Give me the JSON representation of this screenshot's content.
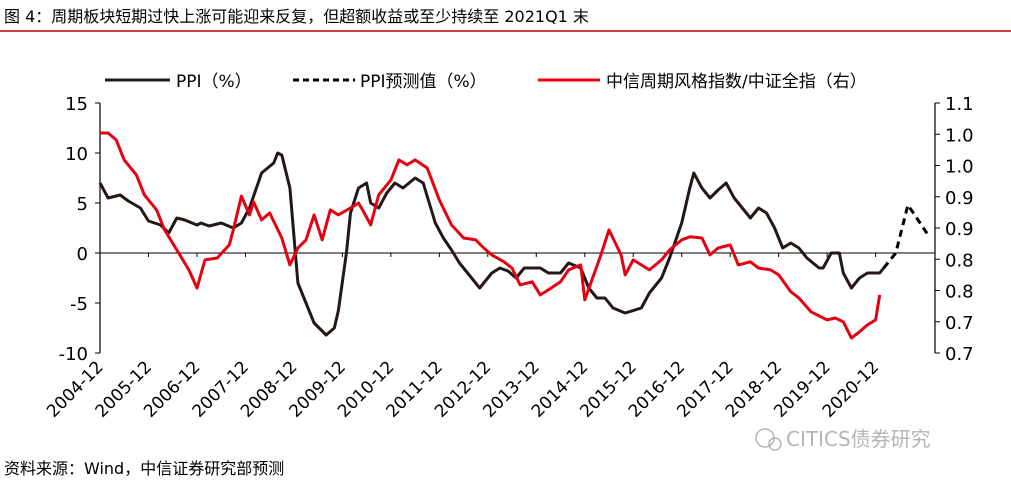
{
  "title": "图 4：周期板块短期过快上涨可能迎来反复，但超额收益或至少持续至 2021Q1 末",
  "source": "资料来源：Wind，中信证券研究部预测",
  "watermark": "CITICS债券研究",
  "colors": {
    "ppi": "#231815",
    "forecast": "#000000",
    "index": "#e60012",
    "rule": "#c00000"
  },
  "chart_data": {
    "type": "line",
    "x_unit": "months since 2004-12",
    "xlim": [
      0,
      206.7
    ],
    "xticks": [
      0,
      12,
      24,
      36,
      48,
      60,
      72,
      84,
      96,
      108,
      120,
      132,
      144,
      156,
      168,
      180,
      192
    ],
    "xtick_labels": [
      "2004-12",
      "2005-12",
      "2006-12",
      "2007-12",
      "2008-12",
      "2009-12",
      "2010-12",
      "2011-12",
      "2012-12",
      "2013-12",
      "2014-12",
      "2015-12",
      "2016-12",
      "2017-12",
      "2018-12",
      "2019-12",
      "2020-12"
    ],
    "ylim_left": [
      -10,
      15
    ],
    "yticks_left": [
      15,
      10,
      5,
      0,
      -5,
      -10
    ],
    "yticks_left_labels": [
      "15",
      "10",
      "5",
      "0",
      "-5",
      "-10"
    ],
    "ylim_right": [
      0.7,
      1.1
    ],
    "yticks_right": [
      1.1,
      1.05,
      1.0,
      0.95,
      0.9,
      0.85,
      0.8,
      0.75,
      0.7
    ],
    "yticks_right_labels": [
      "1.1",
      "1.0",
      "1.0",
      "0.9",
      "0.9",
      "0.8",
      "0.8",
      "0.7",
      "0.7"
    ],
    "legend_position": "top",
    "series": [
      {
        "name": "PPI（%）",
        "axis": "left",
        "style": "solid",
        "color": "#231815",
        "points": [
          [
            0,
            7.0
          ],
          [
            2,
            5.5
          ],
          [
            5,
            5.8
          ],
          [
            7,
            5.2
          ],
          [
            10,
            4.5
          ],
          [
            12,
            3.2
          ],
          [
            15,
            2.8
          ],
          [
            17,
            2.0
          ],
          [
            19,
            3.5
          ],
          [
            21,
            3.3
          ],
          [
            24,
            2.8
          ],
          [
            25,
            3.0
          ],
          [
            27,
            2.7
          ],
          [
            30,
            3.0
          ],
          [
            33,
            2.5
          ],
          [
            35,
            3.0
          ],
          [
            37,
            4.5
          ],
          [
            40,
            8.0
          ],
          [
            43,
            9.0
          ],
          [
            44,
            10.0
          ],
          [
            45,
            9.8
          ],
          [
            47,
            6.5
          ],
          [
            49,
            -3.0
          ],
          [
            51,
            -5.0
          ],
          [
            53,
            -7.0
          ],
          [
            56,
            -8.2
          ],
          [
            58,
            -7.5
          ],
          [
            59,
            -5.8
          ],
          [
            61,
            0
          ],
          [
            62,
            4.0
          ],
          [
            64,
            6.5
          ],
          [
            66,
            7.0
          ],
          [
            67,
            5.0
          ],
          [
            69,
            4.5
          ],
          [
            71,
            6.0
          ],
          [
            73,
            7.0
          ],
          [
            75,
            6.5
          ],
          [
            78,
            7.5
          ],
          [
            80,
            7.0
          ],
          [
            83,
            3.0
          ],
          [
            85,
            1.5
          ],
          [
            87,
            0.3
          ],
          [
            89,
            -1.0
          ],
          [
            92,
            -2.5
          ],
          [
            94,
            -3.5
          ],
          [
            97,
            -2.0
          ],
          [
            99,
            -1.5
          ],
          [
            101,
            -1.8
          ],
          [
            103,
            -2.5
          ],
          [
            105,
            -1.5
          ],
          [
            109,
            -1.5
          ],
          [
            111,
            -2.0
          ],
          [
            114,
            -2.0
          ],
          [
            116,
            -1.0
          ],
          [
            119,
            -1.5
          ],
          [
            121,
            -3.5
          ],
          [
            123,
            -4.5
          ],
          [
            125,
            -4.5
          ],
          [
            127,
            -5.5
          ],
          [
            130,
            -6.0
          ],
          [
            134,
            -5.5
          ],
          [
            136,
            -4.0
          ],
          [
            139,
            -2.5
          ],
          [
            141,
            -0.5
          ],
          [
            144,
            3.0
          ],
          [
            146,
            6.5
          ],
          [
            147,
            8.0
          ],
          [
            149,
            6.5
          ],
          [
            151,
            5.5
          ],
          [
            153,
            6.3
          ],
          [
            155,
            7.0
          ],
          [
            157,
            5.5
          ],
          [
            159,
            4.5
          ],
          [
            161,
            3.5
          ],
          [
            163,
            4.5
          ],
          [
            165,
            4.0
          ],
          [
            167,
            2.5
          ],
          [
            169,
            0.5
          ],
          [
            171,
            1.0
          ],
          [
            173,
            0.5
          ],
          [
            175,
            -0.5
          ],
          [
            178,
            -1.5
          ],
          [
            179,
            -1.5
          ],
          [
            181,
            0
          ],
          [
            183,
            0
          ],
          [
            184,
            -2.0
          ],
          [
            186,
            -3.5
          ],
          [
            188,
            -2.5
          ],
          [
            190,
            -2.0
          ],
          [
            193,
            -2.0
          ],
          [
            194,
            -1.5
          ]
        ]
      },
      {
        "name": "PPI预测值（%）",
        "axis": "left",
        "style": "dashed",
        "color": "#000000",
        "points": [
          [
            194,
            -1.5
          ],
          [
            197,
            0
          ],
          [
            200,
            4.8
          ],
          [
            203,
            3.0
          ],
          [
            205,
            1.8
          ]
        ]
      },
      {
        "name": "中信周期风格指数/中证全指（右）",
        "axis": "right",
        "style": "solid",
        "color": "#e60012",
        "points": [
          [
            0,
            1.052
          ],
          [
            2,
            1.052
          ],
          [
            4,
            1.041
          ],
          [
            6,
            1.009
          ],
          [
            9,
            0.985
          ],
          [
            11,
            0.953
          ],
          [
            14,
            0.929
          ],
          [
            16,
            0.897
          ],
          [
            19,
            0.865
          ],
          [
            22,
            0.833
          ],
          [
            24,
            0.804
          ],
          [
            26,
            0.849
          ],
          [
            29,
            0.852
          ],
          [
            32,
            0.873
          ],
          [
            33,
            0.897
          ],
          [
            35,
            0.951
          ],
          [
            37,
            0.921
          ],
          [
            38,
            0.942
          ],
          [
            40,
            0.913
          ],
          [
            42,
            0.924
          ],
          [
            45,
            0.884
          ],
          [
            47,
            0.841
          ],
          [
            49,
            0.868
          ],
          [
            51,
            0.881
          ],
          [
            53,
            0.921
          ],
          [
            55,
            0.881
          ],
          [
            57,
            0.929
          ],
          [
            59,
            0.921
          ],
          [
            62,
            0.932
          ],
          [
            64,
            0.94
          ],
          [
            65,
            0.929
          ],
          [
            67,
            0.905
          ],
          [
            69,
            0.953
          ],
          [
            72,
            0.977
          ],
          [
            74,
            1.009
          ],
          [
            76,
            1.001
          ],
          [
            78,
            1.009
          ],
          [
            81,
            0.996
          ],
          [
            84,
            0.945
          ],
          [
            87,
            0.905
          ],
          [
            90,
            0.884
          ],
          [
            93,
            0.881
          ],
          [
            95,
            0.868
          ],
          [
            97,
            0.857
          ],
          [
            100,
            0.846
          ],
          [
            102,
            0.836
          ],
          [
            104,
            0.809
          ],
          [
            107,
            0.814
          ],
          [
            109,
            0.793
          ],
          [
            111,
            0.801
          ],
          [
            114,
            0.814
          ],
          [
            116,
            0.833
          ],
          [
            119,
            0.841
          ],
          [
            120,
            0.785
          ],
          [
            124,
            0.857
          ],
          [
            126,
            0.897
          ],
          [
            129,
            0.857
          ],
          [
            130,
            0.825
          ],
          [
            132,
            0.849
          ],
          [
            134,
            0.841
          ],
          [
            136,
            0.833
          ],
          [
            139,
            0.849
          ],
          [
            141,
            0.865
          ],
          [
            144,
            0.881
          ],
          [
            146,
            0.886
          ],
          [
            149,
            0.884
          ],
          [
            151,
            0.857
          ],
          [
            153,
            0.868
          ],
          [
            156,
            0.873
          ],
          [
            158,
            0.841
          ],
          [
            161,
            0.846
          ],
          [
            163,
            0.836
          ],
          [
            166,
            0.833
          ],
          [
            168,
            0.825
          ],
          [
            171,
            0.798
          ],
          [
            173,
            0.788
          ],
          [
            176,
            0.766
          ],
          [
            180,
            0.753
          ],
          [
            182,
            0.756
          ],
          [
            184,
            0.75
          ],
          [
            186,
            0.724
          ],
          [
            188,
            0.734
          ],
          [
            190,
            0.745
          ],
          [
            192,
            0.753
          ],
          [
            193,
            0.793
          ]
        ]
      }
    ]
  }
}
